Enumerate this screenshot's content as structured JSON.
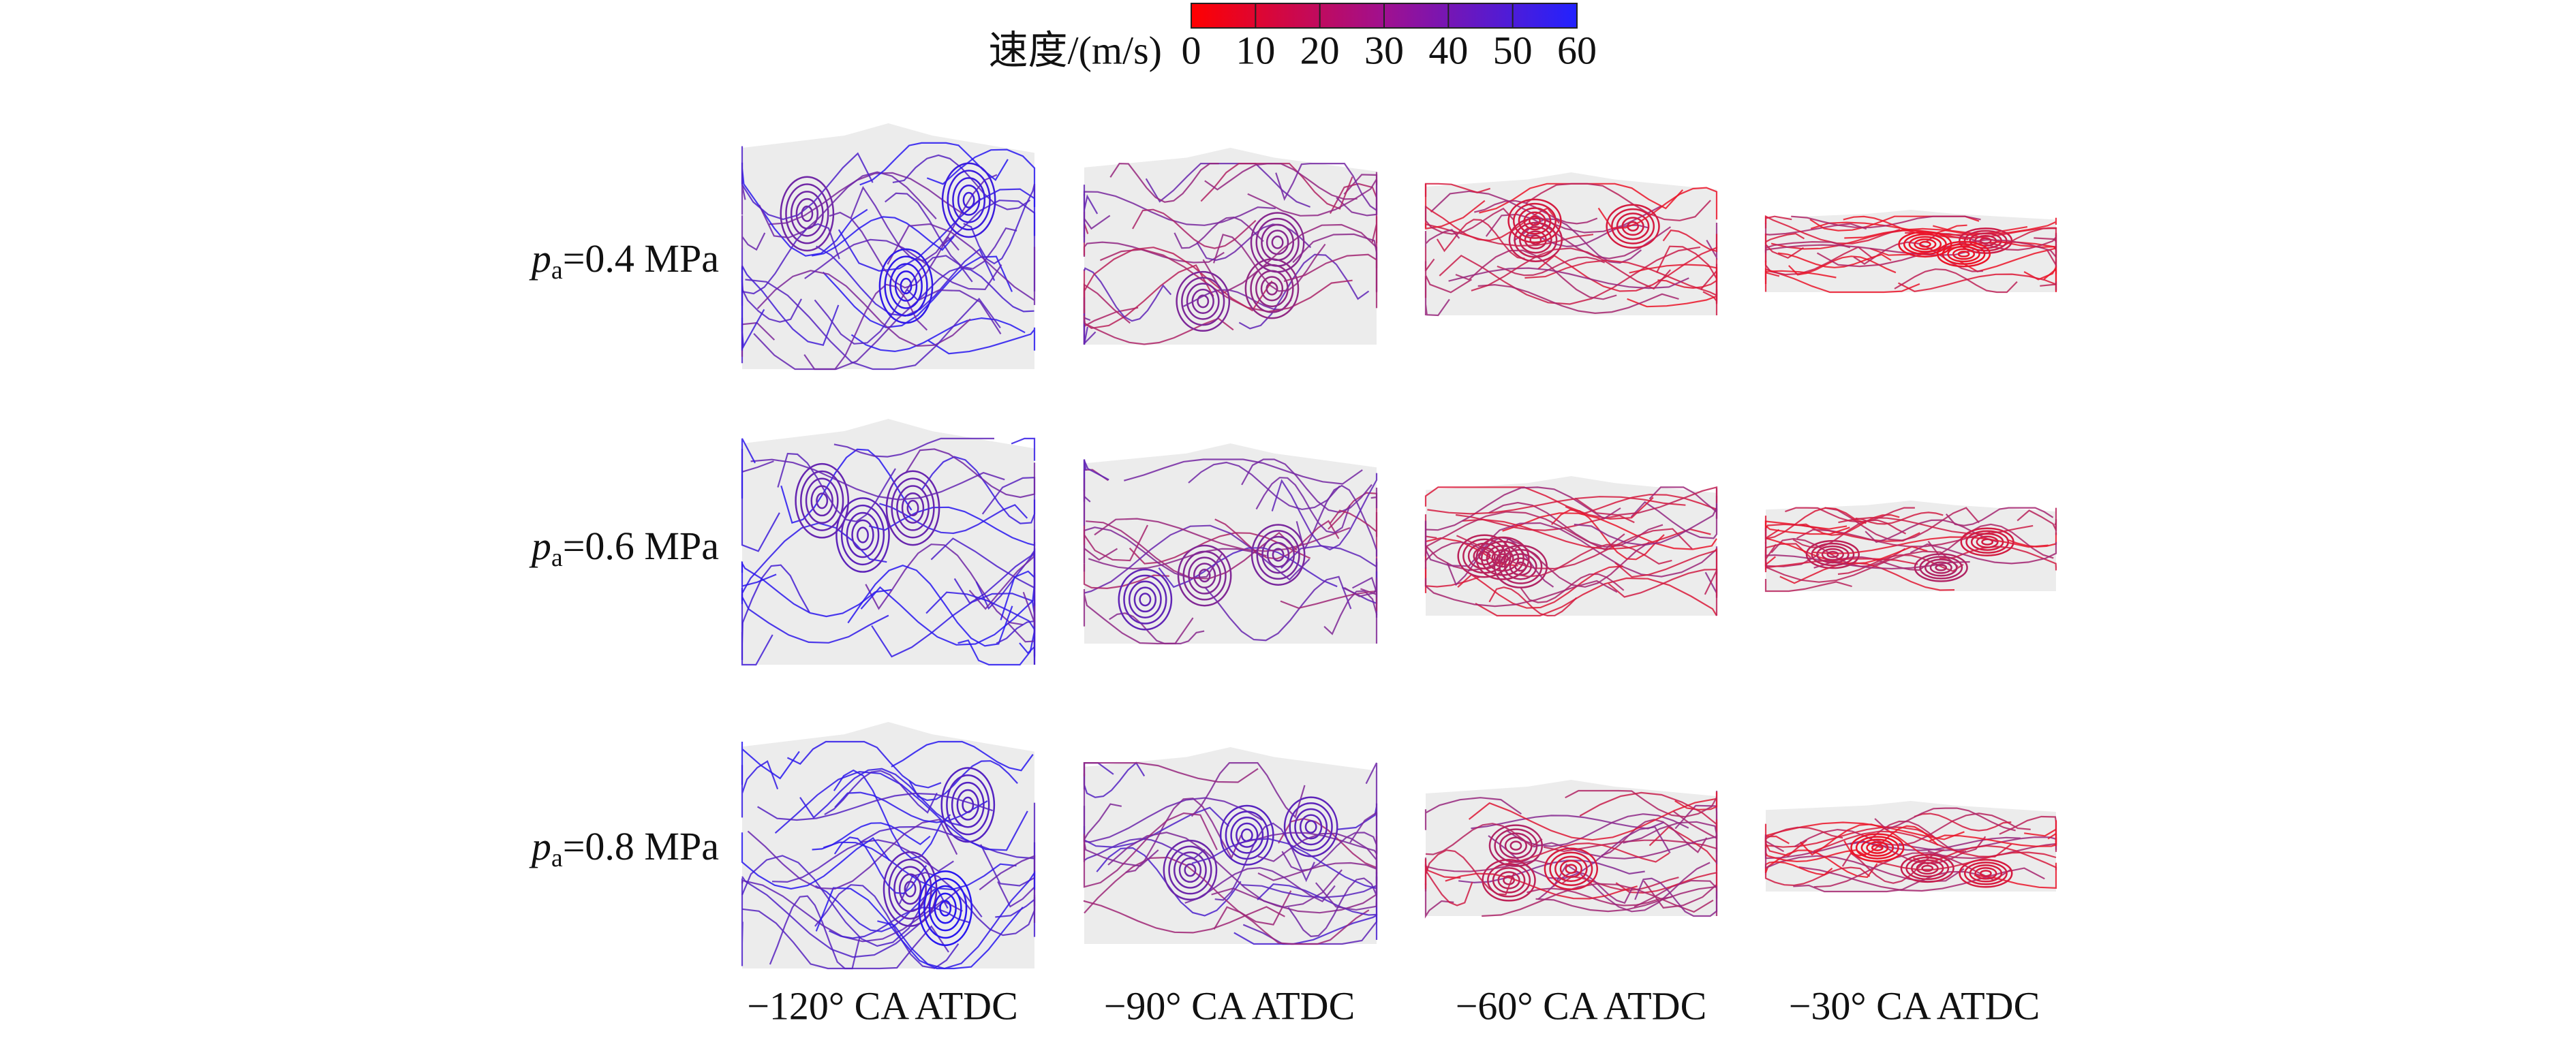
{
  "colorbar": {
    "label": "速度/(m/s)",
    "range": [
      0,
      60
    ],
    "ticks": [
      0,
      10,
      20,
      30,
      40,
      50,
      60
    ]
  },
  "rows": [
    {
      "variable": "p",
      "subscript": "a",
      "text": "=0.4 MPa"
    },
    {
      "variable": "p",
      "subscript": "a",
      "text": "=0.6 MPa"
    },
    {
      "variable": "p",
      "subscript": "a",
      "text": "=0.8 MPa"
    }
  ],
  "columns": [
    "−120° CA ATDC",
    "−90° CA ATDC",
    "−60° CA ATDC",
    "−30° CA ATDC"
  ]
}
